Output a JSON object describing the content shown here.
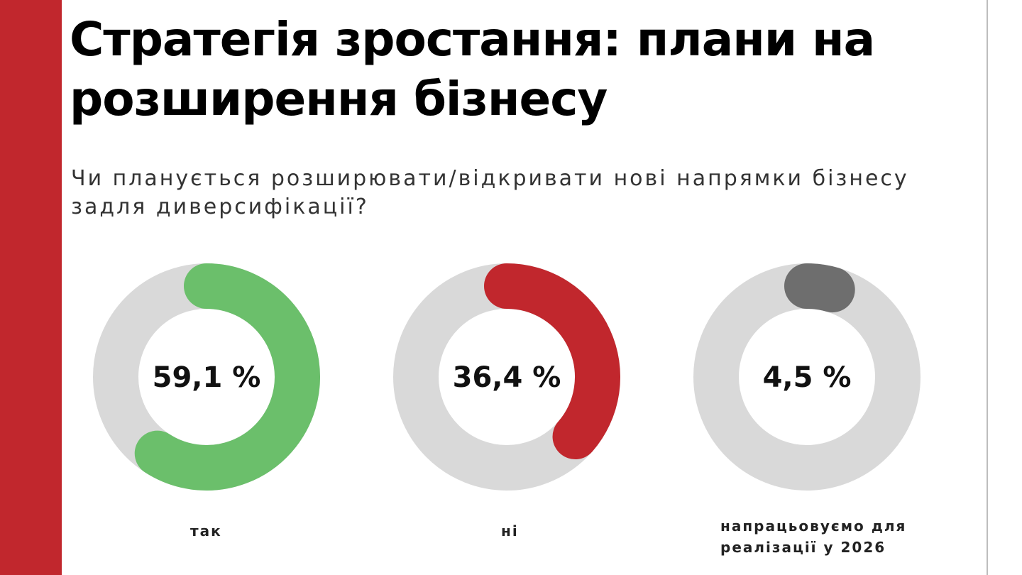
{
  "slide": {
    "title": "Стратегія зростання: плани на розширення бізнесу",
    "question": "Чи планується розширювати/відкривати нові напрямки бізнесу задля диверсифікації?"
  },
  "colors": {
    "accent_bar": "#c1272d",
    "track": "#d9d9d9",
    "yes": "#6bbf6b",
    "no": "#c1272d",
    "preparing": "#6e6e6e"
  },
  "chart_data": {
    "type": "pie",
    "categories": [
      "так",
      "ні",
      "напрацьовуємо для реалізації у 2026"
    ],
    "values": [
      59.1,
      36.4,
      4.5
    ],
    "value_labels": [
      "59,1 %",
      "36,4 %",
      "4,5 %"
    ],
    "colors": [
      "#6bbf6b",
      "#c1272d",
      "#6e6e6e"
    ],
    "title": "",
    "unit": "%"
  }
}
